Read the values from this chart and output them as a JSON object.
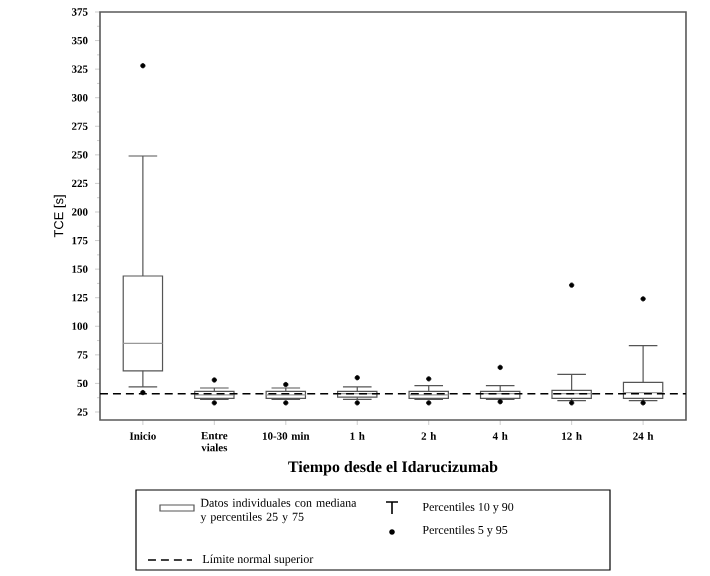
{
  "chart_data": {
    "type": "box",
    "categories": [
      "Inicio",
      "Entre viales",
      "10-30 min",
      "1 h",
      "2 h",
      "4 h",
      "12 h",
      "24 h"
    ],
    "xlabel": "Tiempo desde el Idarucizumab",
    "ylabel": "TCE [s]",
    "ylim": [
      18,
      375
    ],
    "yticks": [
      25,
      50,
      75,
      100,
      125,
      150,
      175,
      200,
      225,
      250,
      275,
      300,
      325,
      350,
      375
    ],
    "series": [
      {
        "name": "Datos individuales con mediana y percentiles 25 y 75",
        "color": "#555555",
        "boxes": [
          {
            "low": 47,
            "q1": 61,
            "median": 85,
            "q3": 144,
            "high": 249,
            "outliers": [
              42,
              328
            ]
          },
          {
            "low": 36,
            "q1": 37,
            "median": 40,
            "q3": 43,
            "high": 46,
            "outliers": [
              33,
              53
            ]
          },
          {
            "low": 36,
            "q1": 37,
            "median": 40,
            "q3": 43,
            "high": 46,
            "outliers": [
              33,
              49
            ]
          },
          {
            "low": 36,
            "q1": 38,
            "median": 41,
            "q3": 43,
            "high": 47,
            "outliers": [
              33,
              55
            ]
          },
          {
            "low": 36,
            "q1": 37,
            "median": 40,
            "q3": 43,
            "high": 48,
            "outliers": [
              33,
              54
            ]
          },
          {
            "low": 36,
            "q1": 37,
            "median": 41,
            "q3": 43,
            "high": 48,
            "outliers": [
              34,
              64
            ]
          },
          {
            "low": 35,
            "q1": 37,
            "median": 41,
            "q3": 44,
            "high": 58,
            "outliers": [
              33,
              136
            ]
          },
          {
            "low": 35,
            "q1": 37,
            "median": 42,
            "q3": 51,
            "high": 83,
            "outliers": [
              33,
              124
            ]
          }
        ]
      }
    ],
    "ref_lines": [
      {
        "axis": "y",
        "value": 41,
        "label": "Límite normal superior",
        "color": "#000000",
        "line_style": "dashed"
      }
    ],
    "annotations": [
      "Percentiles 10 y 90",
      "Percentiles 5 y 95"
    ],
    "legend": "bottom"
  }
}
